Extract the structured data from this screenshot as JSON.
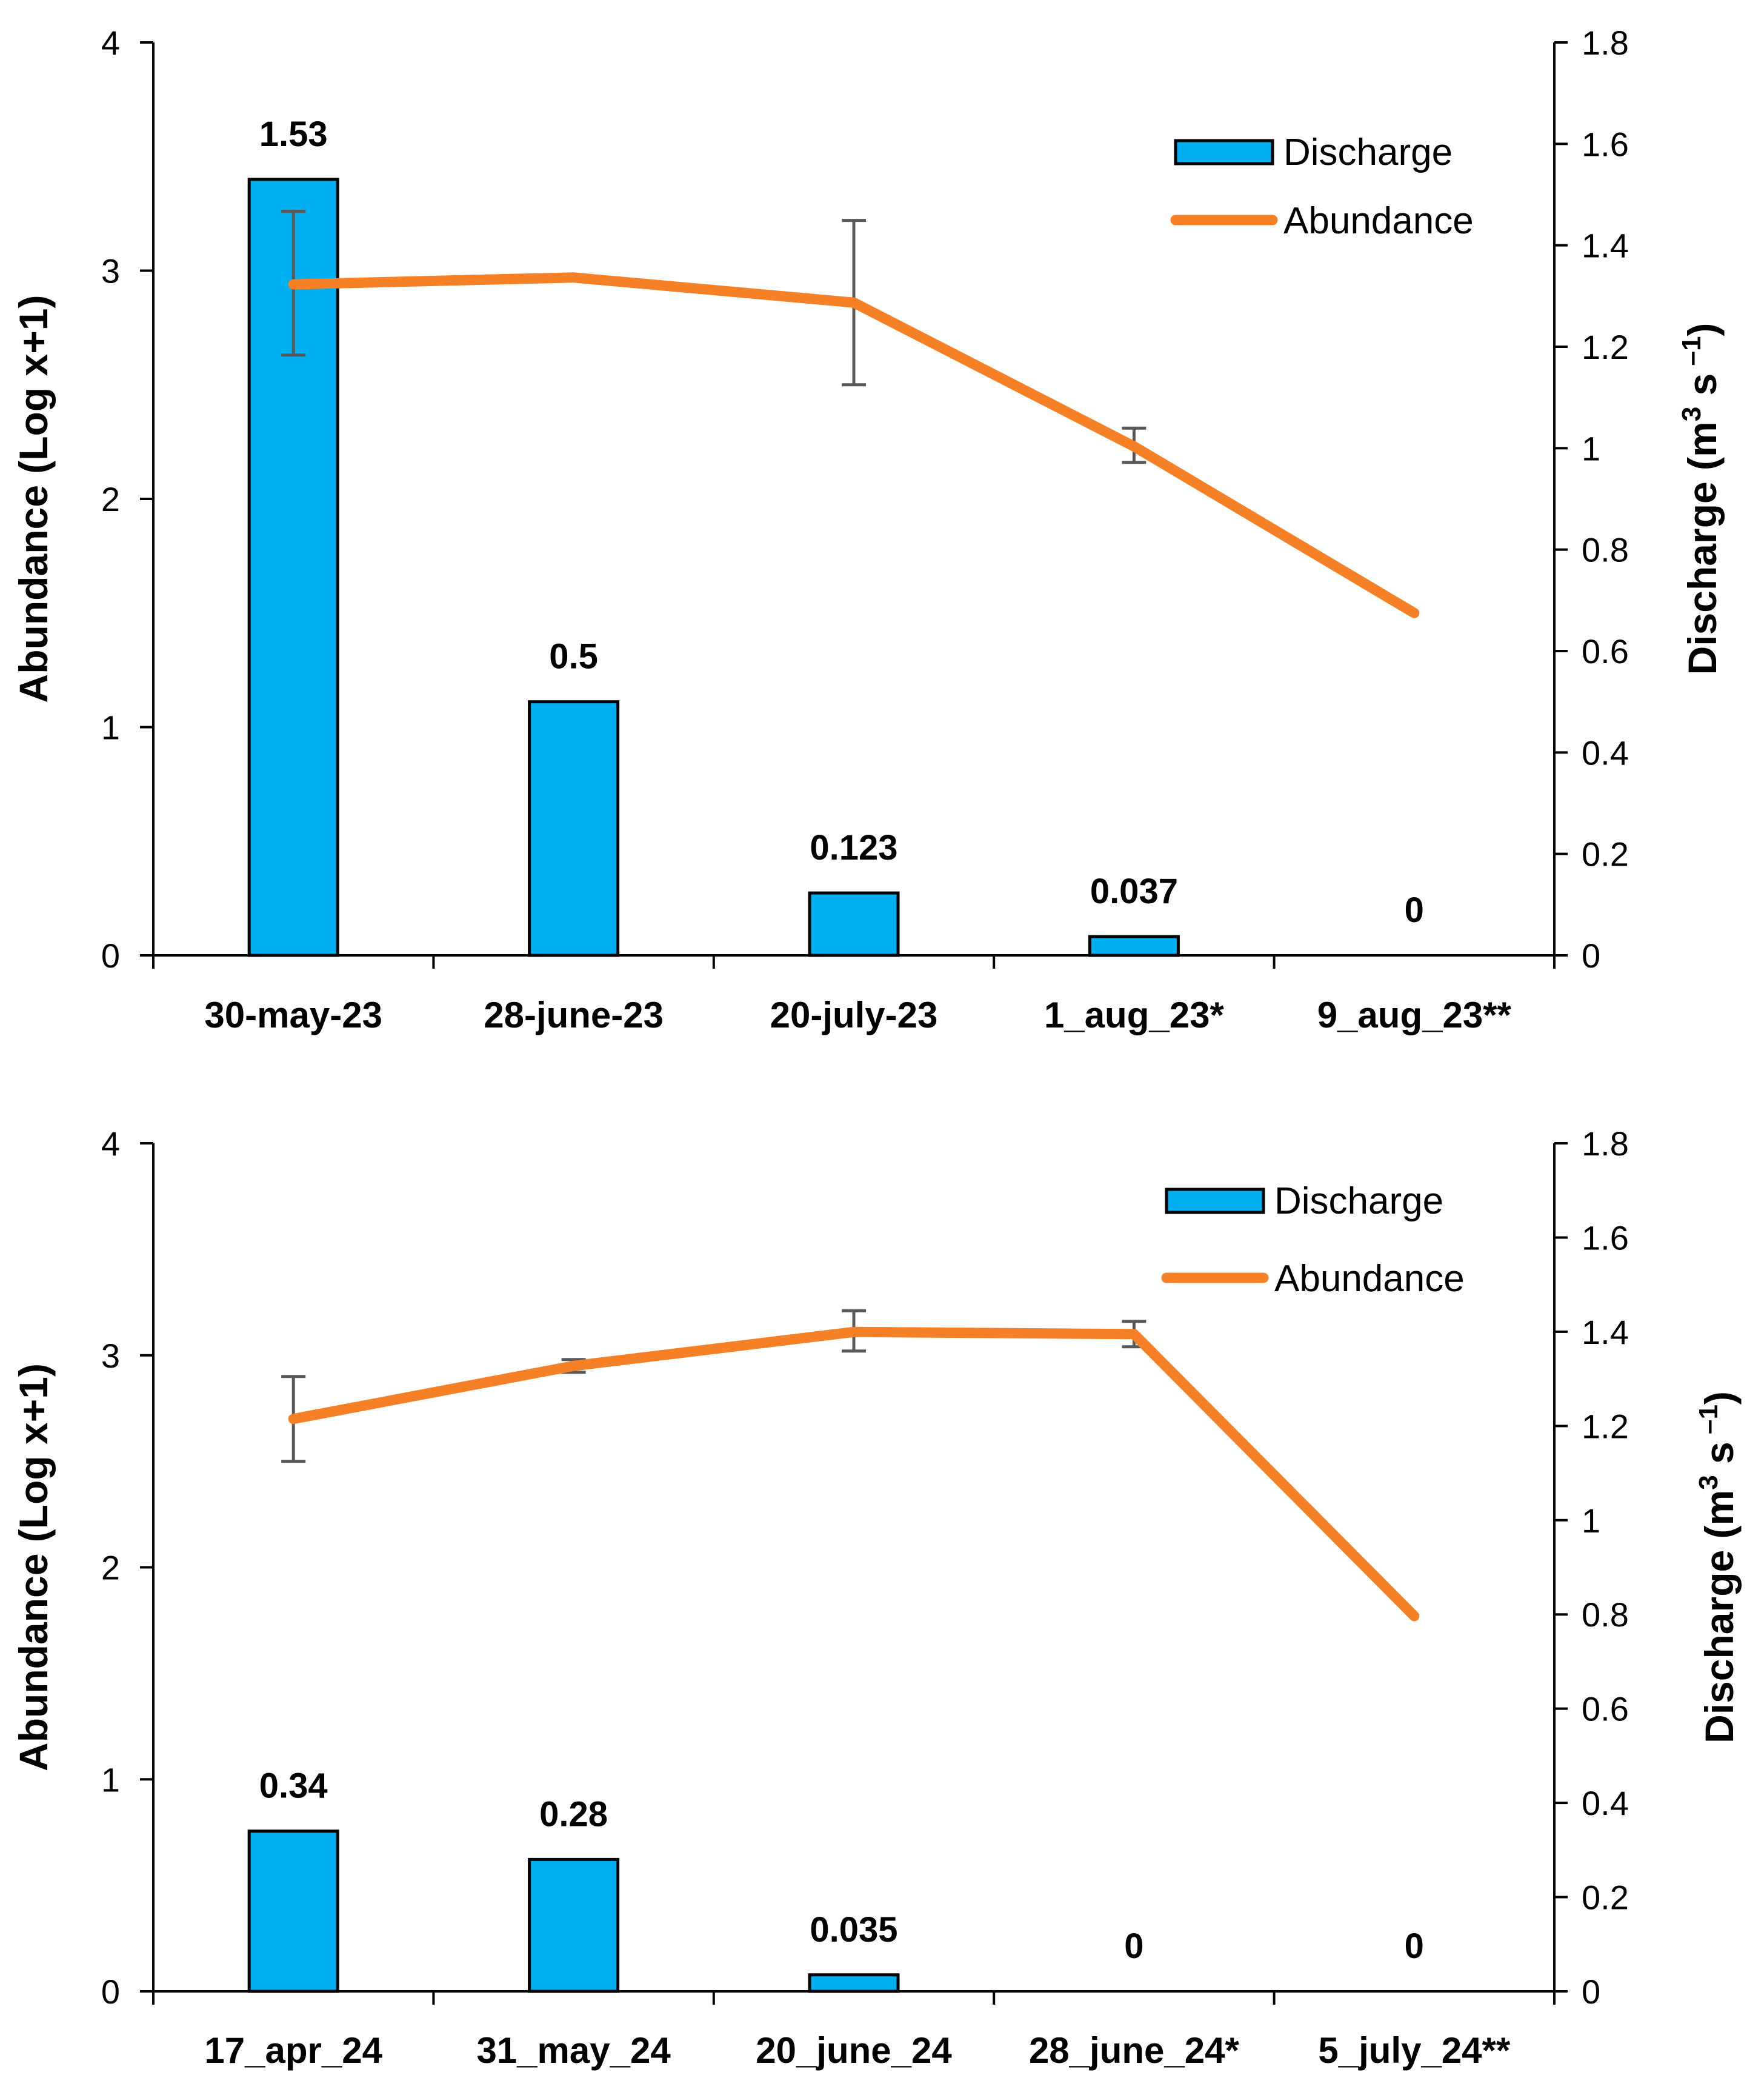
{
  "chart_data": [
    {
      "type": "bar+line",
      "categories": [
        "30-may-23",
        "28-june-23",
        "20-july-23",
        "1_aug_23*",
        "9_aug_23**"
      ],
      "discharge": {
        "name": "Discharge",
        "values": [
          1.53,
          0.5,
          0.123,
          0.037,
          0
        ],
        "labels": [
          "1.53",
          "0.5",
          "0.123",
          "0.037",
          "0"
        ]
      },
      "abundance": {
        "name": "Abundance",
        "values": [
          2.94,
          2.97,
          2.86,
          2.23,
          1.5
        ],
        "err_low": [
          2.63,
          null,
          2.5,
          2.16,
          null
        ],
        "err_high": [
          3.26,
          null,
          3.22,
          2.31,
          null
        ]
      },
      "left_axis": {
        "label": "Abundance (Log x+1)",
        "min": 0,
        "max": 4,
        "ticks": [
          "0",
          "1",
          "2",
          "3",
          "4"
        ]
      },
      "right_axis": {
        "label_main": "Discharge (m",
        "label_sup": "3",
        "label_mid": " s",
        "label_sup2": " –1",
        "label_end": ")",
        "min": 0,
        "max": 1.8,
        "ticks": [
          "0",
          "0.2",
          "0.4",
          "0.6",
          "0.8",
          "1",
          "1.2",
          "1.4",
          "1.6",
          "1.8"
        ]
      },
      "legend": {
        "position": "top-right",
        "discharge": "Discharge",
        "abundance": "Abundance"
      }
    },
    {
      "type": "bar+line",
      "categories": [
        "17_apr_24",
        "31_may_24",
        "20_june_24",
        "28_june_24*",
        "5_july_24**"
      ],
      "discharge": {
        "name": "Discharge",
        "values": [
          0.34,
          0.28,
          0.035,
          0,
          0
        ],
        "labels": [
          "0.34",
          "0.28",
          "0.035",
          "0",
          "0"
        ]
      },
      "abundance": {
        "name": "Abundance",
        "values": [
          2.7,
          2.95,
          3.11,
          3.1,
          1.77
        ],
        "err_low": [
          2.5,
          2.92,
          3.02,
          3.04,
          null
        ],
        "err_high": [
          2.9,
          2.98,
          3.21,
          3.16,
          null
        ]
      },
      "left_axis": {
        "label": "Abundance (Log x+1)",
        "min": 0,
        "max": 4,
        "ticks": [
          "0",
          "1",
          "2",
          "3",
          "4"
        ]
      },
      "right_axis": {
        "label_main": "Discharge (m",
        "label_sup": "3",
        "label_mid": " s",
        "label_sup2": " –1",
        "label_end": ")",
        "min": 0,
        "max": 1.8,
        "ticks": [
          "0",
          "0.2",
          "0.4",
          "0.6",
          "0.8",
          "1",
          "1.2",
          "1.4",
          "1.6",
          "1.8"
        ]
      },
      "legend": {
        "position": "top-right",
        "discharge": "Discharge",
        "abundance": "Abundance"
      }
    }
  ],
  "colors": {
    "bar_fill": "#00b0f0",
    "bar_stroke": "#000000",
    "line": "#f58025",
    "error_bar": "#595959",
    "axis": "#000000"
  }
}
